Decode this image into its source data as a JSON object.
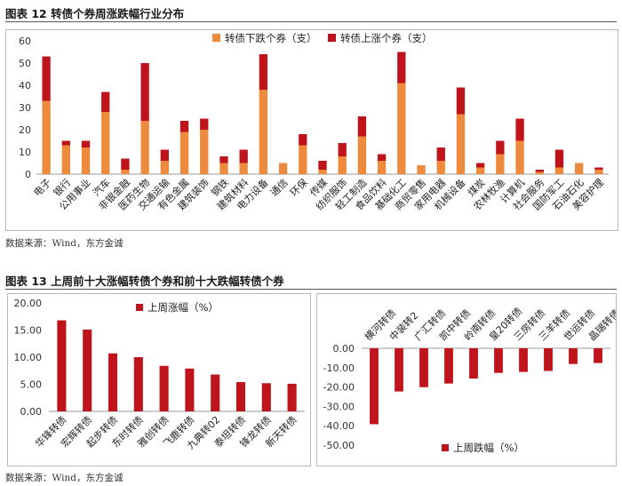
{
  "figure12": {
    "title": "图表 12  转债个券周涨跌幅行业分布",
    "source": "数据来源：Wind，东方金诚"
  },
  "figure13": {
    "title": "图表 13  上周前十大涨幅转债个券和前十大跌幅转债个券",
    "source": "数据来源：Wind，东方金诚"
  },
  "colors": {
    "down": "#ED8A3C",
    "up": "#C0141C",
    "axis": "#9a9a9a"
  },
  "chart_data": [
    {
      "type": "bar",
      "stacked": true,
      "title": "",
      "categories": [
        "电子",
        "银行",
        "公用事业",
        "汽车",
        "非银金融",
        "医药生物",
        "交通运输",
        "有色金属",
        "建筑装饰",
        "钢铁",
        "建筑材料",
        "电力设备",
        "通信",
        "环保",
        "传媒",
        "纺织服饰",
        "轻工制造",
        "食品饮料",
        "基础化工",
        "商贸零售",
        "家用电器",
        "机械设备",
        "煤炭",
        "农林牧渔",
        "计算机",
        "社会服务",
        "国防军工",
        "石油石化",
        "美容护理"
      ],
      "series": [
        {
          "name": "转债下跌个券（支）",
          "values": [
            33,
            13,
            12,
            28,
            2,
            24,
            6,
            19,
            20,
            5,
            5,
            38,
            5,
            13,
            2,
            8,
            17,
            6,
            41,
            4,
            6,
            27,
            3,
            9,
            15,
            1,
            3,
            5,
            2
          ]
        },
        {
          "name": "转债上涨个券（支）",
          "values": [
            20,
            2,
            3,
            9,
            5,
            26,
            5,
            5,
            5,
            3,
            6,
            16,
            0,
            5,
            4,
            6,
            9,
            3,
            14,
            0,
            6,
            12,
            2,
            6,
            10,
            1,
            8,
            0,
            1
          ]
        }
      ],
      "yticks": [
        "0",
        "10",
        "20",
        "30",
        "40",
        "50",
        "60"
      ],
      "ylim": [
        0,
        60
      ],
      "legend_position": "top-center"
    },
    {
      "type": "bar",
      "title": "",
      "legend": "上周涨幅（%）",
      "categories": [
        "华锋转债",
        "宏辉转债",
        "起步转债",
        "东时转债",
        "雅创转债",
        "飞鹿转债",
        "九典转02",
        "泰坦转债",
        "锋龙转债",
        "新天转债"
      ],
      "values": [
        16.8,
        15.1,
        10.7,
        10.0,
        8.4,
        7.9,
        6.8,
        5.4,
        5.2,
        5.1
      ],
      "yticks": [
        "0.00",
        "5.00",
        "10.00",
        "15.00",
        "20.00"
      ],
      "ylim": [
        0,
        20
      ],
      "legend_position": "top-center"
    },
    {
      "type": "bar",
      "title": "",
      "legend": "上周跌幅（%）",
      "categories": [
        "横河转债",
        "中装转2",
        "广汇转债",
        "凯中转债",
        "岭南转债",
        "皇20转债",
        "三房转债",
        "三羊转债",
        "世运转债",
        "晶瑞转债"
      ],
      "values": [
        -39.2,
        -22.3,
        -20.1,
        -18.2,
        -15.6,
        -12.7,
        -12.2,
        -11.7,
        -8.1,
        -7.6
      ],
      "yticks": [
        "0.00",
        "-10.00",
        "-20.00",
        "-30.00",
        "-40.00",
        "-50.00"
      ],
      "ylim": [
        -50,
        0
      ],
      "legend_position": "bottom-center"
    }
  ]
}
